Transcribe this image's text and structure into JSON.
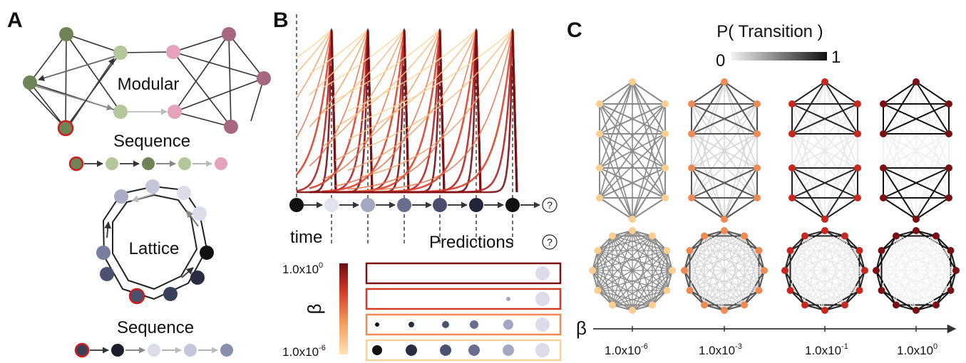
{
  "panels": {
    "a": {
      "letter": "A",
      "modular_label": "Modular",
      "sequence_label_1": "Sequence",
      "lattice_label": "Lattice",
      "sequence_label_2": "Sequence"
    },
    "b": {
      "letter": "B",
      "time_label": "time",
      "predictions_label": "Predictions",
      "question_mark": "?",
      "colorbar_title": "β",
      "colorbar_top": "1.0x10",
      "colorbar_top_exp": "0",
      "colorbar_bottom": "1.0x10",
      "colorbar_bottom_exp": "-6"
    },
    "c": {
      "letter": "C",
      "legend_title": "P( Transition )",
      "legend_min": "0",
      "legend_max": "1",
      "axis_label": "β",
      "ticks": [
        {
          "base": "1.0x10",
          "exp": "-6"
        },
        {
          "base": "1.0x10",
          "exp": "-3"
        },
        {
          "base": "1.0x10",
          "exp": "-1"
        },
        {
          "base": "1.0x10",
          "exp": "0"
        }
      ]
    }
  },
  "colors": {
    "module_green_dark": "#6f8456",
    "module_green_light": "#b3c79b",
    "module_pink_light": "#e4a2bb",
    "module_pink_dark": "#a5687e",
    "start_ring": "#d21c1c",
    "beta_low": "#fbd8a0",
    "beta_mid": "#f08a55",
    "beta_high": "#c7271f",
    "beta_max": "#7a0f14"
  }
}
